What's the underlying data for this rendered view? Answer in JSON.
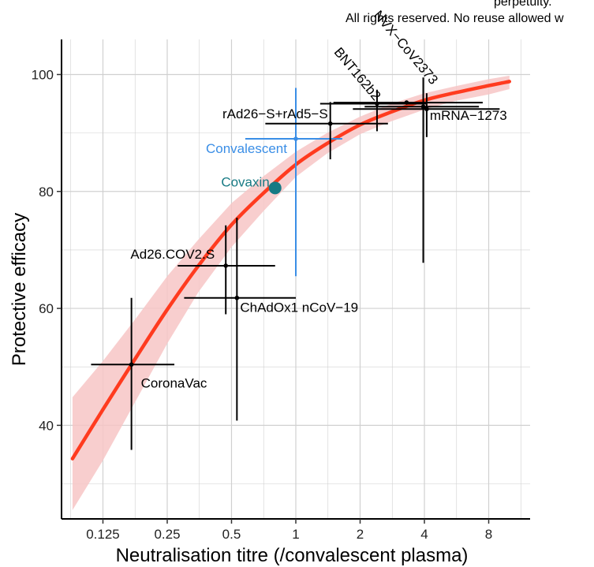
{
  "header": {
    "notice_line1": "perpetuity.",
    "notice_line2": "All rights reserved. No reuse allowed w"
  },
  "colors": {
    "fit_line": "#ff3b1f",
    "ci_band": "#f7c6c6",
    "points": "#000000",
    "convalescent": "#3a8ee6",
    "covaxin": "#177a84",
    "grid": "#d0d0d0"
  },
  "chart_data": {
    "type": "scatter",
    "xlabel": "Neutralisation titre (/convalescent plasma)",
    "ylabel": "Protective efficacy",
    "x_scale": "log2",
    "xlim": [
      0.08,
      12.5
    ],
    "ylim": [
      24,
      106
    ],
    "x_ticks": [
      0.125,
      0.25,
      0.5,
      1,
      2,
      4,
      8
    ],
    "x_tick_labels": [
      "0.125",
      "0.25",
      "0.5",
      "1",
      "2",
      "4",
      "8"
    ],
    "y_ticks": [
      40,
      60,
      80,
      100
    ],
    "y_tick_labels": [
      "40",
      "60",
      "80",
      "100"
    ],
    "grid": true,
    "fitted_curve": {
      "x": [
        0.09,
        0.125,
        0.18,
        0.25,
        0.35,
        0.5,
        0.7,
        1.0,
        1.4,
        2.0,
        2.8,
        4.0,
        5.6,
        8.0,
        10.0
      ],
      "y": [
        34.3,
        42.7,
        51.8,
        59.8,
        67.3,
        74.3,
        79.6,
        84.6,
        88.2,
        91.4,
        93.6,
        95.6,
        96.9,
        98.1,
        98.8
      ],
      "lower": [
        25.5,
        34.0,
        44.5,
        54.0,
        62.8,
        70.5,
        76.5,
        82.5,
        86.5,
        89.8,
        92.0,
        94.0,
        95.5,
        96.6,
        97.5
      ],
      "upper": [
        44.8,
        51.0,
        58.5,
        65.5,
        71.8,
        78.0,
        82.5,
        86.8,
        90.0,
        92.8,
        95.0,
        96.8,
        98.0,
        99.2,
        99.8
      ]
    },
    "points": [
      {
        "label": "CoronaVac",
        "x": 0.17,
        "y": 50.4,
        "x_lo": 0.11,
        "x_hi": 0.27,
        "y_lo": 35.8,
        "y_hi": 61.8,
        "color": "black",
        "rotated": false
      },
      {
        "label": "Ad26.COV2.S",
        "x": 0.47,
        "y": 67.3,
        "x_lo": 0.28,
        "x_hi": 0.8,
        "y_lo": 59.0,
        "y_hi": 74.2,
        "color": "black",
        "rotated": false
      },
      {
        "label": "ChAdOx1 nCoV−19",
        "x": 0.53,
        "y": 61.8,
        "x_lo": 0.3,
        "x_hi": 1.0,
        "y_lo": 40.8,
        "y_hi": 75.5,
        "color": "black",
        "rotated": false
      },
      {
        "label": "Convalescent",
        "x": 1.0,
        "y": 89.0,
        "x_lo": 0.58,
        "x_hi": 1.65,
        "y_lo": 65.5,
        "y_hi": 97.7,
        "color": "convalescent",
        "rotated": false
      },
      {
        "label": "Covaxin",
        "x": 0.8,
        "y": 80.6,
        "color": "covaxin",
        "marker": "large",
        "rotated": false
      },
      {
        "label": "rAd26−S+rAd5−S",
        "x": 1.45,
        "y": 91.6,
        "x_lo": 0.72,
        "x_hi": 2.7,
        "y_lo": 85.5,
        "y_hi": 95.3,
        "color": "black",
        "rotated": false
      },
      {
        "label": "BNT162b2",
        "x": 2.4,
        "y": 95.0,
        "x_lo": 1.3,
        "x_hi": 4.1,
        "y_lo": 90.3,
        "y_hi": 97.4,
        "color": "black",
        "rotated": true
      },
      {
        "label": "NVX−CoV2373",
        "x": 3.3,
        "y": 95.2,
        "x_lo": 1.5,
        "x_hi": 7.5,
        "color": "black",
        "rotated": true
      },
      {
        "label": "mRNA−1273",
        "x": 4.1,
        "y": 94.1,
        "x_lo": 1.85,
        "x_hi": 9.0,
        "y_lo": 89.3,
        "y_hi": 96.8,
        "color": "black",
        "rotated": false
      },
      {
        "x": 3.95,
        "y": 94.5,
        "x_lo": 2.1,
        "x_hi": 7.2,
        "y_lo": 67.8,
        "y_hi": 99.5,
        "color": "black"
      }
    ]
  }
}
